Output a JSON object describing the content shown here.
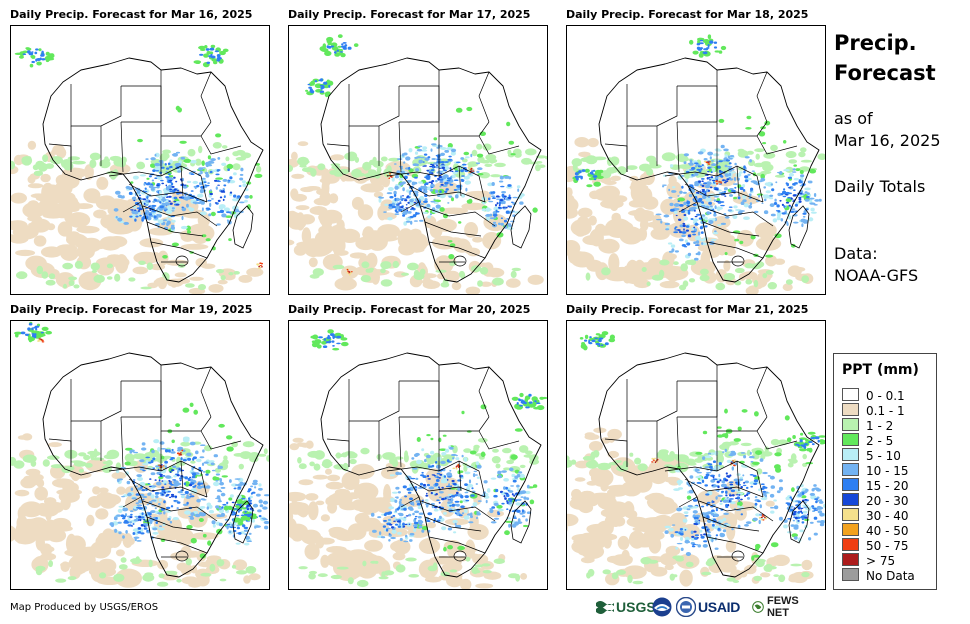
{
  "panels": [
    {
      "title": "Daily Precip. Forecast for Mar 16, 2025"
    },
    {
      "title": "Daily Precip. Forecast for Mar 17, 2025"
    },
    {
      "title": "Daily Precip. Forecast for Mar 18, 2025"
    },
    {
      "title": "Daily Precip. Forecast for Mar 19, 2025"
    },
    {
      "title": "Daily Precip. Forecast for Mar 20, 2025"
    },
    {
      "title": "Daily Precip. Forecast for Mar 21, 2025"
    }
  ],
  "side": {
    "title_line1": "Precip.",
    "title_line2": "Forecast",
    "asof_line1": "as of",
    "asof_line2": "Mar 16, 2025",
    "totals": "Daily Totals",
    "data_label": "Data:",
    "data_source": "NOAA-GFS"
  },
  "legend": {
    "title": "PPT (mm)",
    "items": [
      {
        "label": "0 - 0.1",
        "color": "#ffffff"
      },
      {
        "label": "0.1 - 1",
        "color": "#eedcc2"
      },
      {
        "label": "1 - 2",
        "color": "#b9f2b0"
      },
      {
        "label": "2 - 5",
        "color": "#62e85c"
      },
      {
        "label": "5 - 10",
        "color": "#b9eef6"
      },
      {
        "label": "10 - 15",
        "color": "#73b3f2"
      },
      {
        "label": "15 - 20",
        "color": "#2e7ff2"
      },
      {
        "label": "20 - 30",
        "color": "#1648d8"
      },
      {
        "label": "30 - 40",
        "color": "#f4e08c"
      },
      {
        "label": "40 - 50",
        "color": "#f2a21f"
      },
      {
        "label": "50 - 75",
        "color": "#ef3e12"
      },
      {
        "label": "> 75",
        "color": "#ad1c1c"
      },
      {
        "label": "No Data",
        "color": "#9c9c9c"
      }
    ]
  },
  "footer": {
    "credit": "Map Produced by USGS/EROS",
    "logos": {
      "usgs": "USGS",
      "usaid": "USAID",
      "fews": "FEWS NET"
    }
  }
}
